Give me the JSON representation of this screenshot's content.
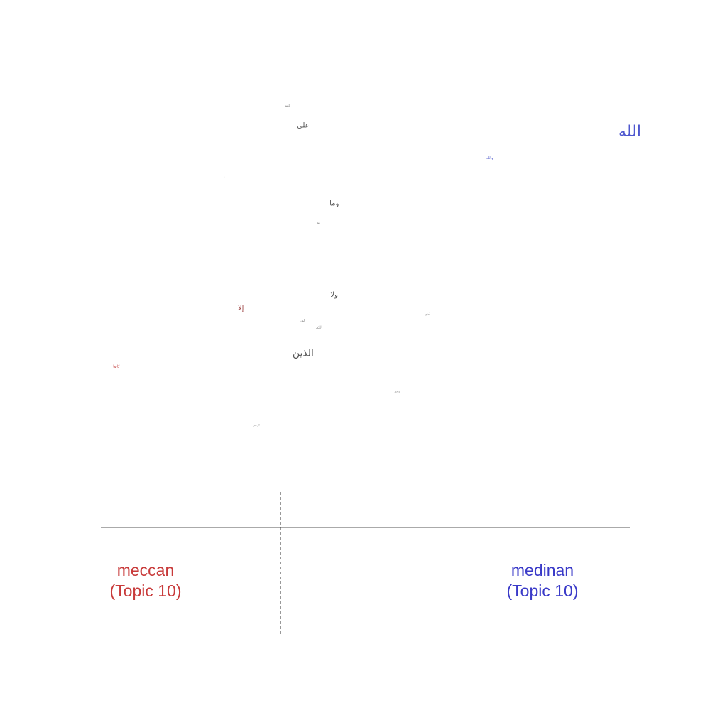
{
  "chart_data": {
    "type": "scatter",
    "title": "",
    "xlabel": "",
    "ylabel": "",
    "xlim": [
      -0.13,
      0.21
    ],
    "ylim": [
      0,
      0.6
    ],
    "grid": false,
    "points": [
      {
        "label": "الله",
        "x": 0.21,
        "y": 0.55,
        "size": 22,
        "color": "#4f58cf"
      },
      {
        "label": "على",
        "x": 0.0,
        "y": 0.56,
        "size": 10,
        "color": "#555555"
      },
      {
        "label": "كنتم",
        "x": -0.01,
        "y": 0.59,
        "size": 4,
        "color": "#777777"
      },
      {
        "label": "والله",
        "x": 0.12,
        "y": 0.51,
        "size": 5,
        "color": "#5a64cc"
      },
      {
        "label": "بما",
        "x": -0.05,
        "y": 0.48,
        "size": 3,
        "color": "#888888"
      },
      {
        "label": "وما",
        "x": 0.02,
        "y": 0.44,
        "size": 10,
        "color": "#555555"
      },
      {
        "label": "بها",
        "x": 0.01,
        "y": 0.41,
        "size": 4,
        "color": "#777777"
      },
      {
        "label": "ولا",
        "x": 0.02,
        "y": 0.3,
        "size": 10,
        "color": "#555555"
      },
      {
        "label": "إلا",
        "x": -0.04,
        "y": 0.28,
        "size": 10,
        "color": "#a14a4a"
      },
      {
        "label": "آمنوا",
        "x": 0.08,
        "y": 0.27,
        "size": 4,
        "color": "#777777"
      },
      {
        "label": "إلى",
        "x": 0.0,
        "y": 0.26,
        "size": 5,
        "color": "#777777"
      },
      {
        "label": "لكم",
        "x": 0.01,
        "y": 0.25,
        "size": 5,
        "color": "#777777"
      },
      {
        "label": "الذين",
        "x": 0.0,
        "y": 0.21,
        "size": 14,
        "color": "#555555"
      },
      {
        "label": "كانوا",
        "x": -0.12,
        "y": 0.19,
        "size": 5,
        "color": "#c44545"
      },
      {
        "label": "الكتاب",
        "x": 0.06,
        "y": 0.15,
        "size": 4,
        "color": "#777777"
      },
      {
        "label": "الرحمن",
        "x": -0.03,
        "y": 0.1,
        "size": 3,
        "color": "#888888"
      }
    ],
    "groups": {
      "left": {
        "line1": "meccan",
        "line2": "(Topic 10)",
        "color": "#c83a3a"
      },
      "right": {
        "line1": "medinan",
        "line2": "(Topic 10)",
        "color": "#3a3ac8"
      }
    },
    "axis_color": "#555555"
  }
}
